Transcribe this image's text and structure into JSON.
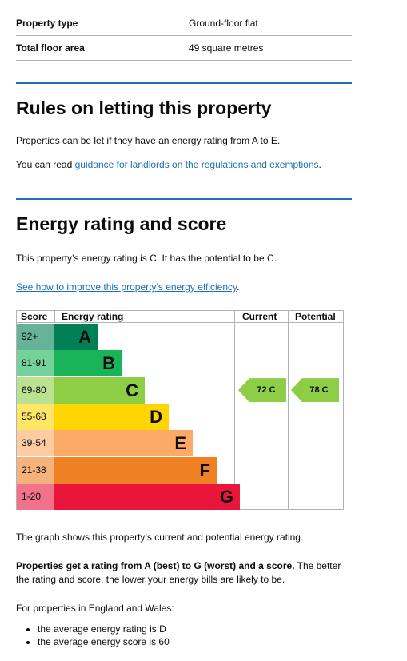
{
  "summary": [
    {
      "key": "Property type",
      "value": "Ground-floor flat"
    },
    {
      "key": "Total floor area",
      "value": "49 square metres"
    }
  ],
  "rules": {
    "heading": "Rules on letting this property",
    "p1": "Properties can be let if they have an energy rating from A to E.",
    "p2_prefix": "You can read ",
    "p2_link": "guidance for landlords on the regulations and exemptions",
    "p2_suffix": "."
  },
  "energy": {
    "heading": "Energy rating and score",
    "p1": "This property’s energy rating is C. It has the potential to be C.",
    "link": "See how to improve this property’s energy efficiency",
    "link_suffix": "."
  },
  "epc_chart": {
    "headers": {
      "score": "Score",
      "rating": "Energy rating",
      "current": "Current",
      "potential": "Potential"
    },
    "bands": [
      {
        "score": "92+",
        "letter": "A",
        "color": "#008054",
        "score_bg": "#66b398",
        "level": 0.2
      },
      {
        "score": "81-91",
        "letter": "B",
        "color": "#19b459",
        "score_bg": "#75d29b",
        "level": 0.31
      },
      {
        "score": "69-80",
        "letter": "C",
        "color": "#8dce46",
        "score_bg": "#bbe290",
        "level": 0.42
      },
      {
        "score": "55-68",
        "letter": "D",
        "color": "#ffd500",
        "score_bg": "#ffe666",
        "level": 0.53
      },
      {
        "score": "39-54",
        "letter": "E",
        "color": "#fcaa65",
        "score_bg": "#fdcca3",
        "level": 0.64
      },
      {
        "score": "21-38",
        "letter": "F",
        "color": "#ef8023",
        "score_bg": "#f5b37b",
        "level": 0.75
      },
      {
        "score": "1-20",
        "letter": "G",
        "color": "#e9153b",
        "score_bg": "#f27389",
        "level": 0.86
      }
    ],
    "current": {
      "label": "72 C",
      "band": "C"
    },
    "potential": {
      "label": "78 C",
      "band": "C"
    }
  },
  "after": {
    "graph": "The graph shows this property’s current and potential energy rating.",
    "best_bold": "Properties get a rating from A (best) to G (worst) and a score.",
    "best_rest": " The better the rating and score, the lower your energy bills are likely to be.",
    "eng": "For properties in England and Wales:",
    "list": [
      "the average energy rating is D",
      "the average energy score is 60"
    ]
  }
}
